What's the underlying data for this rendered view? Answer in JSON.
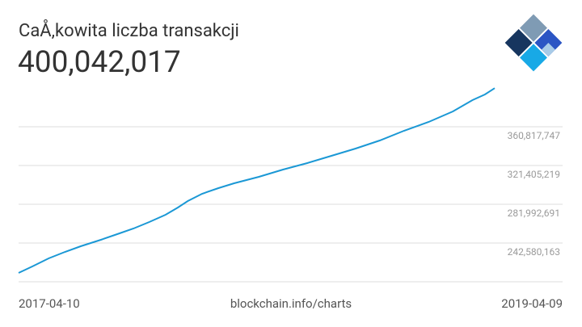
{
  "chart_data": {
    "type": "line",
    "title": "CaÅ‚kowita liczba transakcji",
    "headline": "400,042,017",
    "source": "blockchain.info/charts",
    "color": "#1b98d5",
    "grid": true,
    "xlim": [
      "2017-04-10",
      "2019-04-09"
    ],
    "ylim": [
      203167635,
      400230275
    ],
    "yticks": [
      {
        "value": 242580163,
        "label": "242,580,163"
      },
      {
        "value": 281992691,
        "label": "281,992,691"
      },
      {
        "value": 321405219,
        "label": "321,405,219"
      },
      {
        "value": 360817747,
        "label": "360,817,747"
      }
    ],
    "x": [
      "2017-04-10",
      "2017-05-01",
      "2017-05-26",
      "2017-06-20",
      "2017-07-14",
      "2017-08-14",
      "2017-09-08",
      "2017-10-03",
      "2017-10-27",
      "2017-11-21",
      "2017-12-10",
      "2017-12-25",
      "2018-01-16",
      "2018-02-10",
      "2018-03-06",
      "2018-04-13",
      "2018-05-20",
      "2018-06-26",
      "2018-08-02",
      "2018-09-08",
      "2018-10-15",
      "2018-11-21",
      "2018-12-29",
      "2019-02-04",
      "2019-03-06",
      "2019-03-25",
      "2019-04-09"
    ],
    "values": [
      212200000,
      218770000,
      226980000,
      233550000,
      239300000,
      245860000,
      251610000,
      257360000,
      263930000,
      271320000,
      278710000,
      285280000,
      292670000,
      298410000,
      303340000,
      309910000,
      317300000,
      323870000,
      331260000,
      338650000,
      346860000,
      356710000,
      365740000,
      376420000,
      387910000,
      393660000,
      400042017
    ]
  }
}
